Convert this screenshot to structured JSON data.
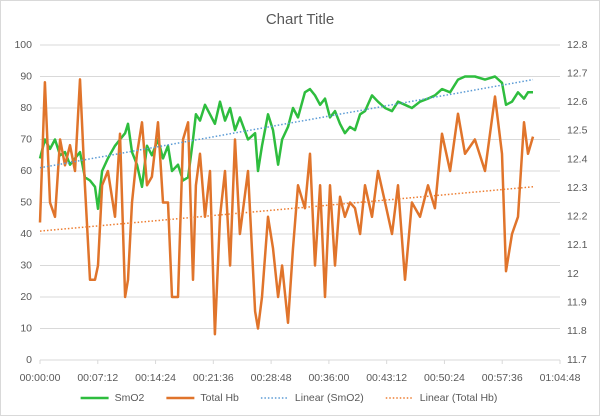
{
  "chart_data": {
    "type": "line",
    "title": "Chart Title",
    "x": [
      0,
      37,
      75,
      112,
      150,
      187,
      224,
      262,
      299,
      336,
      374,
      411,
      434,
      464,
      508,
      561,
      598,
      636,
      658,
      688,
      725,
      763,
      800,
      837,
      882,
      920,
      957,
      987,
      1032,
      1069,
      1107,
      1144,
      1166,
      1196,
      1234,
      1271,
      1308,
      1346,
      1383,
      1421,
      1458,
      1495,
      1555,
      1608,
      1630,
      1660,
      1705,
      1742,
      1780,
      1810,
      1854,
      1892,
      1929,
      1981,
      2019,
      2056,
      2094,
      2131,
      2168,
      2206,
      2243,
      2280,
      2318,
      2355,
      2393,
      2430,
      2482,
      2527,
      2580,
      2632,
      2677,
      2729,
      2781,
      2841,
      2901,
      2953,
      3006,
      3066,
      3125,
      3178,
      3252,
      3327,
      3402,
      3454,
      3484,
      3529,
      3574,
      3619,
      3649,
      3686
    ],
    "series": [
      {
        "name": "SmO2",
        "color": "#2ebd3e",
        "axis": "y",
        "style": "solid",
        "values": [
          64,
          70,
          67,
          70,
          65,
          66,
          62,
          64,
          66,
          58,
          57,
          55,
          48,
          60,
          64,
          68,
          70,
          72,
          75,
          66,
          62,
          55,
          68,
          65,
          70,
          64,
          68,
          60,
          62,
          57,
          58,
          70,
          78,
          76,
          81,
          78,
          75,
          82,
          76,
          80,
          73,
          77,
          70,
          72,
          60,
          68,
          78,
          73,
          62,
          70,
          74,
          80,
          77,
          85,
          86,
          84,
          81,
          83,
          77,
          79,
          75,
          72,
          74,
          73,
          78,
          79,
          84,
          82,
          80,
          79,
          82,
          81,
          80,
          82,
          83,
          84,
          86,
          85,
          89,
          90,
          90,
          89,
          90,
          88,
          81,
          82,
          85,
          83,
          85,
          85
        ]
      },
      {
        "name": "Total Hb",
        "color": "#e0742b",
        "axis": "y2",
        "style": "solid",
        "values": [
          12.18,
          12.67,
          12.25,
          12.2,
          12.47,
          12.38,
          12.45,
          12.36,
          12.68,
          12.31,
          11.98,
          11.98,
          12.03,
          12.31,
          12.36,
          12.2,
          12.49,
          11.92,
          11.98,
          12.25,
          12.42,
          12.53,
          12.31,
          12.34,
          12.53,
          12.25,
          12.25,
          11.92,
          11.92,
          12.47,
          12.53,
          11.98,
          12.31,
          12.42,
          12.2,
          12.36,
          11.79,
          12.2,
          12.36,
          12.03,
          12.47,
          12.14,
          12.36,
          11.87,
          11.81,
          11.92,
          12.2,
          12.09,
          11.92,
          12.03,
          11.83,
          12.09,
          12.31,
          12.23,
          12.42,
          12.03,
          12.31,
          11.92,
          12.31,
          12.03,
          12.27,
          12.2,
          12.25,
          12.23,
          12.14,
          12.31,
          12.2,
          12.36,
          12.25,
          12.14,
          12.31,
          11.98,
          12.25,
          12.2,
          12.31,
          12.23,
          12.49,
          12.36,
          12.56,
          12.42,
          12.47,
          12.36,
          12.62,
          12.42,
          12.01,
          12.14,
          12.2,
          12.53,
          12.42,
          12.48
        ]
      },
      {
        "name": "Linear (SmO2)",
        "color": "#5b9bd5",
        "axis": "y",
        "style": "dotted",
        "x": [
          0,
          3686
        ],
        "values": [
          61,
          89
        ]
      },
      {
        "name": "Linear (Total Hb)",
        "color": "#ed7d31",
        "axis": "y2",
        "style": "dotted",
        "x": [
          0,
          3686
        ],
        "values": [
          12.15,
          12.305
        ]
      }
    ],
    "xlim": [
      0,
      3888
    ],
    "xticks": [
      {
        "value": 0,
        "label": "00:00:00"
      },
      {
        "value": 432,
        "label": "00:07:12"
      },
      {
        "value": 864,
        "label": "00:14:24"
      },
      {
        "value": 1296,
        "label": "00:21:36"
      },
      {
        "value": 1728,
        "label": "00:28:48"
      },
      {
        "value": 2160,
        "label": "00:36:00"
      },
      {
        "value": 2592,
        "label": "00:43:12"
      },
      {
        "value": 3024,
        "label": "00:50:24"
      },
      {
        "value": 3456,
        "label": "00:57:36"
      },
      {
        "value": 3888,
        "label": "01:04:48"
      }
    ],
    "ylim": [
      0,
      100
    ],
    "yticks": [
      0,
      10,
      20,
      30,
      40,
      50,
      60,
      70,
      80,
      90,
      100
    ],
    "y2lim": [
      11.7,
      12.8
    ],
    "y2ticks": [
      11.7,
      11.8,
      11.9,
      12,
      12.1,
      12.2,
      12.3,
      12.4,
      12.5,
      12.6,
      12.7,
      12.8
    ],
    "grid": true,
    "legend": "bottom"
  }
}
